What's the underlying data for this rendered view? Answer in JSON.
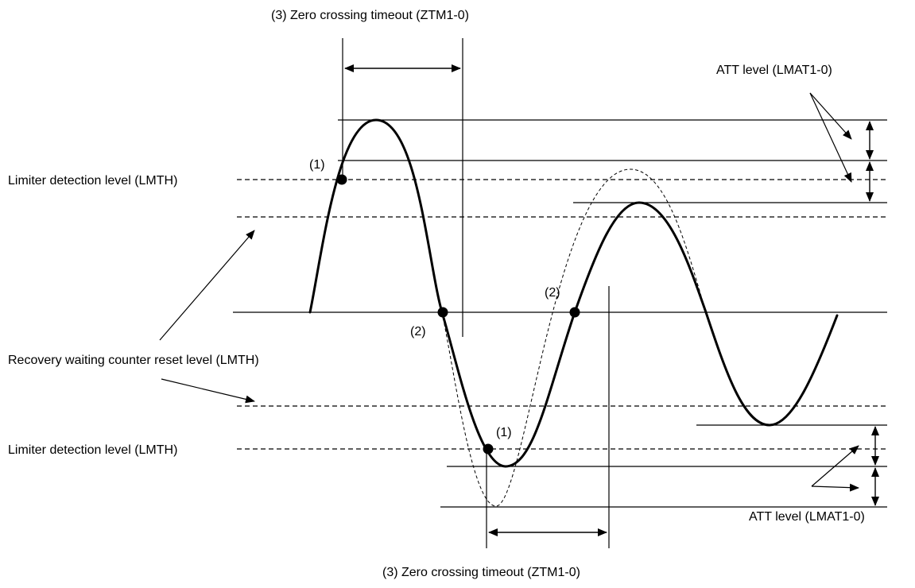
{
  "labels": {
    "zero_crossing_top": "(3) Zero crossing timeout (ZTM1-0)",
    "zero_crossing_bottom": "(3) Zero crossing timeout (ZTM1-0)",
    "att_top": "ATT level (LMAT1-0)",
    "att_bottom": "ATT level (LMAT1-0)",
    "limiter_top": "Limiter detection level (LMTH)",
    "limiter_bottom": "Limiter detection level (LMTH)",
    "recovery": "Recovery waiting counter reset level (LMTH)",
    "marker_1_top": "(1)",
    "marker_1_bottom": "(1)",
    "marker_2_left": "(2)",
    "marker_2_right": "(2)"
  }
}
